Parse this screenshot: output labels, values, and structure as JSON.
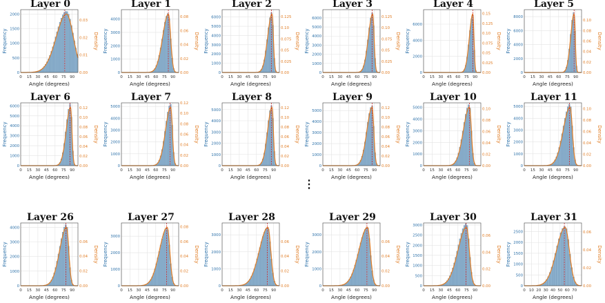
{
  "figure": {
    "ellipsis": "⋮",
    "colors": {
      "bar_fill": "#8fb3cf",
      "bar_edge": "#5a87ad",
      "density_line": "#e07b22",
      "left_axis_text": "#2a6fa8",
      "right_axis_text": "#e07b22",
      "grid": "#e3e3e3",
      "vline": "#d62728"
    }
  },
  "chart_data": [
    {
      "type": "bar",
      "title": "Layer 0",
      "xlabel": "Angle (degrees)",
      "ylabel": "Frequency",
      "y2label": "Density",
      "xlim": [
        0,
        100
      ],
      "xticks": [
        0,
        15,
        30,
        45,
        60,
        75,
        90
      ],
      "yticks": [
        0,
        500,
        1000,
        1500,
        2000
      ],
      "y2ticks": [
        0.0,
        0.01,
        0.02,
        0.03
      ],
      "ymax": 2150,
      "y2max": 0.036,
      "peak": 80,
      "spread": 12,
      "skew": 1.5,
      "vline": 77
    },
    {
      "type": "bar",
      "title": "Layer 1",
      "xlabel": "Angle (degrees)",
      "ylabel": "Frequency",
      "y2label": "Density",
      "xlim": [
        0,
        100
      ],
      "xticks": [
        0,
        15,
        30,
        45,
        60,
        75,
        90
      ],
      "yticks": [
        0,
        1000,
        2000,
        3000,
        4000
      ],
      "y2ticks": [
        0.0,
        0.02,
        0.04,
        0.06,
        0.08
      ],
      "ymax": 4700,
      "y2max": 0.09,
      "peak": 82,
      "spread": 4,
      "skew": 2.5,
      "vline": 82
    },
    {
      "type": "bar",
      "title": "Layer 2",
      "xlabel": "Angle (degrees)",
      "ylabel": "Frequency",
      "y2label": "Density",
      "xlim": [
        0,
        100
      ],
      "xticks": [
        0,
        15,
        30,
        45,
        60,
        75,
        90
      ],
      "yticks": [
        0,
        1000,
        2000,
        3000,
        4000,
        5000,
        6000
      ],
      "y2ticks": [
        0.0,
        0.025,
        0.05,
        0.075,
        0.1,
        0.125
      ],
      "ymax": 6800,
      "y2max": 0.14,
      "peak": 87,
      "spread": 2.5,
      "skew": 3,
      "vline": 86
    },
    {
      "type": "bar",
      "title": "Layer 3",
      "xlabel": "Angle (degrees)",
      "ylabel": "Frequency",
      "y2label": "Density",
      "xlim": [
        0,
        100
      ],
      "xticks": [
        0,
        15,
        30,
        45,
        60,
        75,
        90
      ],
      "yticks": [
        0,
        1000,
        2000,
        3000,
        4000,
        5000,
        6000
      ],
      "y2ticks": [
        0.0,
        0.025,
        0.05,
        0.075,
        0.1,
        0.125
      ],
      "ymax": 6900,
      "y2max": 0.14,
      "peak": 87,
      "spread": 2.5,
      "skew": 3,
      "vline": 86
    },
    {
      "type": "bar",
      "title": "Layer 4",
      "xlabel": "Angle (degrees)",
      "ylabel": "Frequency",
      "y2label": "Density",
      "xlim": [
        0,
        100
      ],
      "xticks": [
        0,
        15,
        30,
        45,
        60,
        75,
        90
      ],
      "yticks": [
        0,
        2000,
        4000,
        6000
      ],
      "y2ticks": [
        0.0,
        0.025,
        0.05,
        0.075,
        0.1,
        0.125,
        0.15
      ],
      "ymax": 7800,
      "y2max": 0.16,
      "peak": 86,
      "spread": 2,
      "skew": 3,
      "vline": 86
    },
    {
      "type": "bar",
      "title": "Layer 5",
      "xlabel": "Angle (degrees)",
      "ylabel": "Frequency",
      "y2label": "Density",
      "xlim": [
        0,
        100
      ],
      "xticks": [
        0,
        15,
        30,
        45,
        60,
        75,
        90
      ],
      "yticks": [
        0,
        2000,
        4000,
        6000,
        8000
      ],
      "y2ticks": [
        0.0,
        0.02,
        0.04,
        0.06,
        0.08,
        0.1
      ],
      "ymax": 9000,
      "y2max": 0.12,
      "peak": 87,
      "spread": 2,
      "skew": 3,
      "vline": 87
    },
    {
      "type": "bar",
      "title": "Layer 6",
      "xlabel": "Angle (degrees)",
      "ylabel": "Frequency",
      "y2label": "Density",
      "xlim": [
        0,
        100
      ],
      "xticks": [
        0,
        15,
        30,
        45,
        60,
        75,
        90
      ],
      "yticks": [
        0,
        1000,
        2000,
        3000,
        4000,
        5000,
        6000
      ],
      "y2ticks": [
        0.0,
        0.02,
        0.04,
        0.06,
        0.08,
        0.1,
        0.12
      ],
      "ymax": 6300,
      "y2max": 0.13,
      "peak": 87,
      "spread": 2.5,
      "skew": 3,
      "vline": 86
    },
    {
      "type": "bar",
      "title": "Layer 7",
      "xlabel": "Angle (degrees)",
      "ylabel": "Frequency",
      "y2label": "Density",
      "xlim": [
        0,
        100
      ],
      "xticks": [
        0,
        15,
        30,
        45,
        60,
        75,
        90
      ],
      "yticks": [
        0,
        1000,
        2000,
        3000,
        4000,
        5000
      ],
      "y2ticks": [
        0.0,
        0.02,
        0.04,
        0.06,
        0.08,
        0.1,
        0.12
      ],
      "ymax": 5300,
      "y2max": 0.12,
      "peak": 86,
      "spread": 3,
      "skew": 3,
      "vline": 85
    },
    {
      "type": "bar",
      "title": "Layer 8",
      "xlabel": "Angle (degrees)",
      "ylabel": "Frequency",
      "y2label": "Density",
      "xlim": [
        0,
        100
      ],
      "xticks": [
        0,
        15,
        30,
        45,
        60,
        75,
        90
      ],
      "yticks": [
        0,
        1000,
        2000,
        3000,
        4000,
        5000
      ],
      "y2ticks": [
        0.0,
        0.02,
        0.04,
        0.06,
        0.08,
        0.1,
        0.12
      ],
      "ymax": 5600,
      "y2max": 0.13,
      "peak": 87,
      "spread": 2.5,
      "skew": 3,
      "vline": 86
    },
    {
      "type": "bar",
      "title": "Layer 9",
      "xlabel": "Angle (degrees)",
      "ylabel": "Frequency",
      "y2label": "Density",
      "xlim": [
        0,
        100
      ],
      "xticks": [
        0,
        15,
        30,
        45,
        60,
        75,
        90
      ],
      "yticks": [
        0,
        1000,
        2000,
        3000,
        4000,
        5000
      ],
      "y2ticks": [
        0.0,
        0.02,
        0.04,
        0.06,
        0.08,
        0.1,
        0.12
      ],
      "ymax": 5700,
      "y2max": 0.13,
      "peak": 86,
      "spread": 3,
      "skew": 3,
      "vline": 86
    },
    {
      "type": "bar",
      "title": "Layer 10",
      "xlabel": "Angle (degrees)",
      "ylabel": "Frequency",
      "y2label": "Density",
      "xlim": [
        0,
        100
      ],
      "xticks": [
        0,
        15,
        30,
        45,
        60,
        75,
        90
      ],
      "yticks": [
        0,
        1000,
        2000,
        3000,
        4000,
        5000
      ],
      "y2ticks": [
        0.0,
        0.02,
        0.04,
        0.06,
        0.08,
        0.1
      ],
      "ymax": 5400,
      "y2max": 0.11,
      "peak": 80,
      "spread": 3.5,
      "skew": 3,
      "vline": 80
    },
    {
      "type": "bar",
      "title": "Layer 11",
      "xlabel": "Angle (degrees)",
      "ylabel": "Frequency",
      "y2label": "Density",
      "xlim": [
        0,
        100
      ],
      "xticks": [
        0,
        15,
        30,
        45,
        60,
        75,
        90
      ],
      "yticks": [
        0,
        1000,
        2000,
        3000,
        4000,
        5000
      ],
      "y2ticks": [
        0.0,
        0.02,
        0.04,
        0.06,
        0.08,
        0.1
      ],
      "ymax": 5300,
      "y2max": 0.11,
      "peak": 80,
      "spread": 4,
      "skew": 3,
      "vline": 79
    },
    {
      "type": "bar",
      "title": "Layer 26",
      "xlabel": "Angle (degrees)",
      "ylabel": "Frequency",
      "y2label": "Density",
      "xlim": [
        0,
        100
      ],
      "xticks": [
        0,
        15,
        30,
        45,
        60,
        75,
        90
      ],
      "yticks": [
        0,
        1000,
        2000,
        3000,
        4000
      ],
      "y2ticks": [
        0.0,
        0.02,
        0.04,
        0.06
      ],
      "ymax": 4300,
      "y2max": 0.085,
      "peak": 80,
      "spread": 4,
      "skew": 3,
      "vline": 79
    },
    {
      "type": "bar",
      "title": "Layer 27",
      "xlabel": "Angle (degrees)",
      "ylabel": "Frequency",
      "y2label": "Density",
      "xlim": [
        0,
        100
      ],
      "xticks": [
        0,
        15,
        30,
        45,
        60,
        75,
        90
      ],
      "yticks": [
        0,
        1000,
        2000,
        3000
      ],
      "y2ticks": [
        0.0,
        0.02,
        0.04,
        0.06,
        0.08
      ],
      "ymax": 3800,
      "y2max": 0.085,
      "peak": 80,
      "spread": 4.5,
      "skew": 3,
      "vline": 79
    },
    {
      "type": "bar",
      "title": "Layer 28",
      "xlabel": "Angle (degrees)",
      "ylabel": "Frequency",
      "y2label": "Density",
      "xlim": [
        0,
        100
      ],
      "xticks": [
        0,
        15,
        30,
        45,
        60,
        75,
        90
      ],
      "yticks": [
        0,
        1000,
        2000,
        3000
      ],
      "y2ticks": [
        0.0,
        0.02,
        0.04,
        0.06
      ],
      "ymax": 3700,
      "y2max": 0.085,
      "peak": 80,
      "spread": 5,
      "skew": 3,
      "vline": 79
    },
    {
      "type": "bar",
      "title": "Layer 29",
      "xlabel": "Angle (degrees)",
      "ylabel": "Frequency",
      "y2label": "Density",
      "xlim": [
        0,
        100
      ],
      "xticks": [
        0,
        15,
        30,
        45,
        60,
        75,
        90
      ],
      "yticks": [
        0,
        1000,
        2000,
        3000
      ],
      "y2ticks": [
        0.0,
        0.02,
        0.04,
        0.06
      ],
      "ymax": 3700,
      "y2max": 0.085,
      "peak": 78,
      "spread": 5,
      "skew": 3,
      "vline": 77
    },
    {
      "type": "bar",
      "title": "Layer 30",
      "xlabel": "Angle (degrees)",
      "ylabel": "Frequency",
      "y2label": "Density",
      "xlim": [
        0,
        100
      ],
      "xticks": [
        0,
        15,
        30,
        45,
        60,
        75,
        90
      ],
      "yticks": [
        0,
        500,
        1000,
        1500,
        2000,
        2500,
        3000
      ],
      "y2ticks": [
        0.0,
        0.02,
        0.04,
        0.06
      ],
      "ymax": 3100,
      "y2max": 0.075,
      "peak": 75,
      "spread": 5,
      "skew": 3,
      "vline": 74
    },
    {
      "type": "bar",
      "title": "Layer 31",
      "xlabel": "Angle (degrees)",
      "ylabel": "Frequency",
      "y2label": "Density",
      "xlim": [
        0,
        80
      ],
      "xticks": [
        0,
        10,
        20,
        30,
        40,
        50,
        60,
        70
      ],
      "yticks": [
        0,
        500,
        1000,
        1500,
        2000,
        2500
      ],
      "y2ticks": [
        0.0,
        0.02,
        0.04,
        0.06
      ],
      "ymax": 2900,
      "y2max": 0.07,
      "peak": 57,
      "spread": 6,
      "skew": 2,
      "vline": 56
    }
  ]
}
